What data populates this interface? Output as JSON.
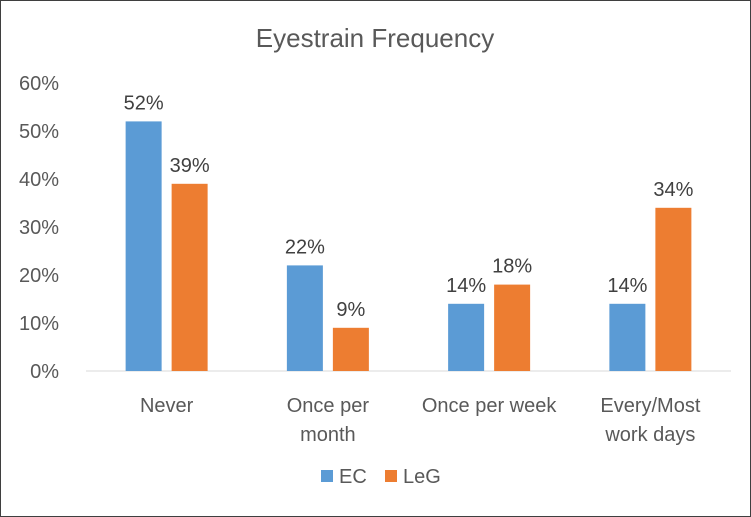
{
  "chart_data": {
    "type": "bar",
    "title": "Eyestrain Frequency",
    "xlabel": "",
    "ylabel": "",
    "categories": [
      [
        "Never"
      ],
      [
        "Once per",
        "month"
      ],
      [
        "Once per week"
      ],
      [
        "Every/Most",
        "work days"
      ]
    ],
    "series": [
      {
        "name": "EC",
        "color": "#5b9bd5",
        "values": [
          52,
          22,
          14,
          14
        ],
        "labels": [
          "52%",
          "22%",
          "14%",
          "14%"
        ]
      },
      {
        "name": "LeG",
        "color": "#ed7d31",
        "values": [
          39,
          9,
          18,
          34
        ],
        "labels": [
          "39%",
          "9%",
          "18%",
          "34%"
        ]
      }
    ],
    "ylim": [
      0,
      60
    ],
    "yticks": [
      0,
      10,
      20,
      30,
      40,
      50,
      60
    ],
    "ytick_labels": [
      "0%",
      "10%",
      "20%",
      "30%",
      "40%",
      "50%",
      "60%"
    ],
    "grid": false,
    "legend_position": "bottom"
  }
}
